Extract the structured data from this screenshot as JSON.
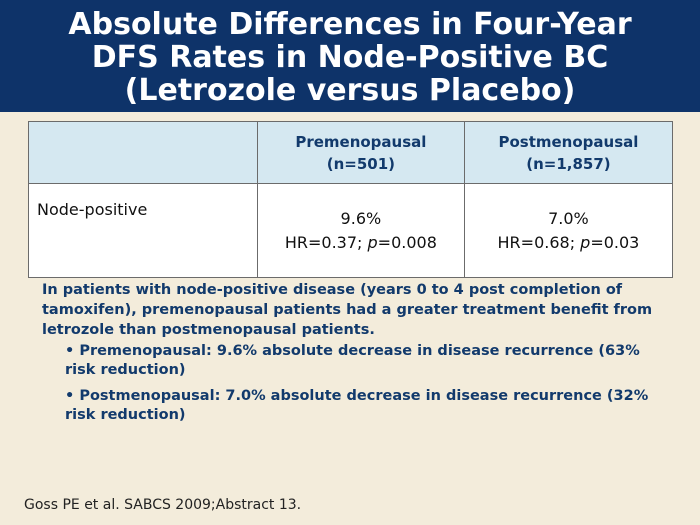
{
  "slide": {
    "title": "Absolute Differences in Four-Year\nDFS Rates in Node-Positive BC\n(Letrozole versus Placebo)"
  },
  "table": {
    "headers": [
      {
        "label": "",
        "sub": ""
      },
      {
        "label": "Premenopausal",
        "sub": "(n=501)"
      },
      {
        "label": "Postmenopausal",
        "sub": "(n=1,857)"
      }
    ],
    "row": {
      "label": "Node-positive",
      "cells": [
        {
          "value": "9.6%",
          "hr_prefix": "HR=0.37; ",
          "p_label": "p",
          "p_value": "=0.008"
        },
        {
          "value": "7.0%",
          "hr_prefix": "HR=0.68; ",
          "p_label": "p",
          "p_value": "=0.03"
        }
      ]
    }
  },
  "summary": "In patients with node-positive disease (years 0 to 4 post completion of tamoxifen), premenopausal patients had a greater treatment benefit from letrozole than postmenopausal patients.",
  "bullets": [
    "• Premenopausal: 9.6% absolute decrease in disease recurrence (63% risk reduction)",
    "• Postmenopausal: 7.0% absolute decrease in disease recurrence (32% risk reduction)"
  ],
  "citation": "Goss PE et al. SABCS 2009;Abstract 13.",
  "colors": {
    "title_bar": "#0e3369",
    "background": "#f3ecdb",
    "header_fill": "#d5e8f1",
    "accent_text": "#123a6c"
  }
}
